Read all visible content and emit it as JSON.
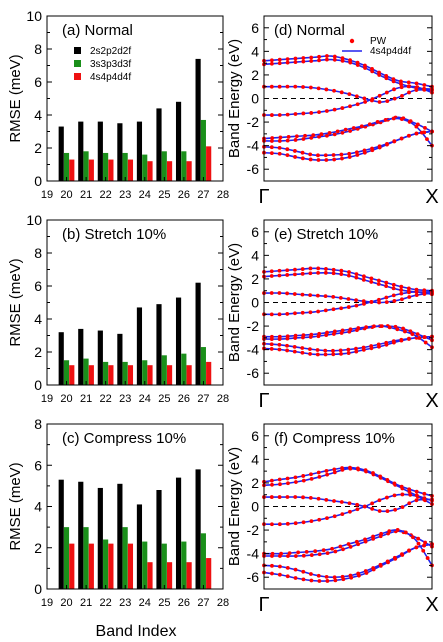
{
  "figure": {
    "common_xlabel": "Band Index"
  },
  "colors": {
    "black_series": "#000000",
    "green_series": "#1a8f1a",
    "red_series": "#ee1111",
    "pw_points": "#ff0000",
    "fit_line": "#2222ee",
    "fermi_line": "#000000"
  },
  "chart_data": [
    {
      "type": "bar",
      "label": "(a) Normal",
      "ylabel": "RMSE (meV)",
      "ylim": [
        0,
        10
      ],
      "yticks": [
        0,
        2,
        4,
        6,
        8,
        10
      ],
      "xlim": [
        19,
        28
      ],
      "xticks": [
        19,
        20,
        21,
        22,
        23,
        24,
        25,
        26,
        27,
        28
      ],
      "categories": [
        20,
        21,
        22,
        23,
        24,
        25,
        26,
        27
      ],
      "legend_position": "top-left",
      "series": [
        {
          "name": "2s2p2d2f",
          "color": "#000000",
          "values": [
            3.3,
            3.6,
            3.6,
            3.5,
            3.6,
            4.4,
            4.8,
            7.4
          ]
        },
        {
          "name": "3s3p3d3f",
          "color": "#1a8f1a",
          "values": [
            1.7,
            1.8,
            1.7,
            1.7,
            1.6,
            1.8,
            1.8,
            3.7
          ]
        },
        {
          "name": "4s4p4d4f",
          "color": "#ee1111",
          "values": [
            1.3,
            1.3,
            1.3,
            1.3,
            1.2,
            1.2,
            1.2,
            2.1
          ]
        }
      ]
    },
    {
      "type": "bar",
      "label": "(b) Stretch 10%",
      "ylabel": "RMSE (meV)",
      "ylim": [
        0,
        10
      ],
      "yticks": [
        0,
        2,
        4,
        6,
        8,
        10
      ],
      "xlim": [
        19,
        28
      ],
      "xticks": [
        19,
        20,
        21,
        22,
        23,
        24,
        25,
        26,
        27,
        28
      ],
      "categories": [
        20,
        21,
        22,
        23,
        24,
        25,
        26,
        27
      ],
      "series": [
        {
          "name": "2s2p2d2f",
          "color": "#000000",
          "values": [
            3.2,
            3.4,
            3.3,
            3.1,
            4.7,
            4.9,
            5.3,
            6.2
          ]
        },
        {
          "name": "3s3p3d3f",
          "color": "#1a8f1a",
          "values": [
            1.5,
            1.6,
            1.4,
            1.4,
            1.5,
            1.8,
            1.9,
            2.3
          ]
        },
        {
          "name": "4s4p4d4f",
          "color": "#ee1111",
          "values": [
            1.2,
            1.2,
            1.2,
            1.2,
            1.2,
            1.2,
            1.2,
            1.4
          ]
        }
      ]
    },
    {
      "type": "bar",
      "label": "(c) Compress 10%",
      "ylabel": "RMSE (meV)",
      "ylim": [
        0,
        8
      ],
      "yticks": [
        0,
        2,
        4,
        6,
        8
      ],
      "xlim": [
        19,
        28
      ],
      "xticks": [
        19,
        20,
        21,
        22,
        23,
        24,
        25,
        26,
        27,
        28
      ],
      "categories": [
        20,
        21,
        22,
        23,
        24,
        25,
        26,
        27
      ],
      "series": [
        {
          "name": "2s2p2d2f",
          "color": "#000000",
          "values": [
            5.3,
            5.2,
            4.9,
            5.1,
            4.1,
            4.8,
            5.4,
            5.8
          ]
        },
        {
          "name": "3s3p3d3f",
          "color": "#1a8f1a",
          "values": [
            3.0,
            3.0,
            2.4,
            3.0,
            2.3,
            2.2,
            2.3,
            2.7
          ]
        },
        {
          "name": "4s4p4d4f",
          "color": "#ee1111",
          "values": [
            2.2,
            2.2,
            2.2,
            2.2,
            1.3,
            1.3,
            1.3,
            1.5
          ]
        }
      ]
    },
    {
      "type": "line",
      "label": "(d) Normal",
      "ylabel": "Band Energy (eV)",
      "ylim": [
        -7,
        7
      ],
      "yticks": [
        -6,
        -4,
        -2,
        0,
        2,
        4,
        6
      ],
      "xlim": [
        0,
        1
      ],
      "xticks_labels": [
        "Γ",
        "X"
      ],
      "fermi_level": 0,
      "legend_position": "top-right",
      "legend": [
        {
          "name": "PW",
          "marker": "point",
          "color": "#ff0000"
        },
        {
          "name": "4s4p4d4f",
          "marker": "line",
          "color": "#2222ee"
        }
      ],
      "series": [
        {
          "values": [
            -4.6,
            -4.7,
            -5.0,
            -5.2,
            -5.2,
            -5.0,
            -4.6,
            -4.1,
            -3.5,
            -3.0,
            -2.8
          ]
        },
        {
          "values": [
            -4.1,
            -4.2,
            -4.5,
            -4.8,
            -4.8,
            -4.7,
            -4.4,
            -4.0,
            -3.5,
            -3.0,
            -2.8
          ]
        },
        {
          "values": [
            -3.6,
            -3.6,
            -3.5,
            -3.3,
            -3.1,
            -2.8,
            -2.4,
            -2.0,
            -1.6,
            -2.1,
            -2.8
          ]
        },
        {
          "values": [
            -3.4,
            -3.3,
            -3.2,
            -3.1,
            -2.9,
            -2.6,
            -2.3,
            -1.9,
            -1.7,
            -2.3,
            -4.0
          ]
        },
        {
          "values": [
            -1.4,
            -1.4,
            -1.3,
            -1.2,
            -1.0,
            -0.7,
            -0.3,
            0.3,
            0.9,
            1.0,
            0.5
          ]
        },
        {
          "values": [
            1.0,
            1.0,
            1.0,
            0.9,
            0.7,
            0.4,
            0.0,
            -0.3,
            0.1,
            0.7,
            0.7
          ]
        },
        {
          "values": [
            2.9,
            3.0,
            3.1,
            3.2,
            3.3,
            3.1,
            2.6,
            1.9,
            1.3,
            0.9,
            0.8
          ]
        },
        {
          "values": [
            3.2,
            3.3,
            3.4,
            3.5,
            3.6,
            3.3,
            2.8,
            2.1,
            1.5,
            1.3,
            1.0
          ]
        }
      ]
    },
    {
      "type": "line",
      "label": "(e) Stretch 10%",
      "ylabel": "Band Energy (eV)",
      "ylim": [
        -7,
        7
      ],
      "yticks": [
        -6,
        -4,
        -2,
        0,
        2,
        4,
        6
      ],
      "xlim": [
        0,
        1
      ],
      "xticks_labels": [
        "Γ",
        "X"
      ],
      "fermi_level": 0,
      "series": [
        {
          "values": [
            -3.9,
            -4.0,
            -4.2,
            -4.4,
            -4.4,
            -4.3,
            -4.0,
            -3.7,
            -3.3,
            -3.0,
            -2.9
          ]
        },
        {
          "values": [
            -3.5,
            -3.6,
            -3.8,
            -4.0,
            -4.1,
            -4.0,
            -3.8,
            -3.5,
            -3.2,
            -3.0,
            -2.9
          ]
        },
        {
          "values": [
            -3.1,
            -3.1,
            -3.0,
            -2.9,
            -2.7,
            -2.5,
            -2.2,
            -2.0,
            -2.1,
            -2.6,
            -3.2
          ]
        },
        {
          "values": [
            -2.9,
            -2.9,
            -2.8,
            -2.7,
            -2.5,
            -2.3,
            -2.1,
            -2.0,
            -2.3,
            -2.8,
            -3.8
          ]
        },
        {
          "values": [
            -1.0,
            -1.0,
            -0.9,
            -0.8,
            -0.6,
            -0.4,
            -0.1,
            0.3,
            0.7,
            0.9,
            0.7
          ]
        },
        {
          "values": [
            0.8,
            0.8,
            0.7,
            0.6,
            0.5,
            0.3,
            0.1,
            0.0,
            0.2,
            0.6,
            0.8
          ]
        },
        {
          "values": [
            2.2,
            2.3,
            2.4,
            2.5,
            2.5,
            2.3,
            1.9,
            1.5,
            1.1,
            0.9,
            0.9
          ]
        },
        {
          "values": [
            2.6,
            2.7,
            2.8,
            2.9,
            2.8,
            2.6,
            2.2,
            1.8,
            1.4,
            1.1,
            1.0
          ]
        }
      ]
    },
    {
      "type": "line",
      "label": "(f) Compress 10%",
      "ylabel": "Band Energy (eV)",
      "ylim": [
        -7,
        7
      ],
      "yticks": [
        -6,
        -4,
        -2,
        0,
        2,
        4,
        6
      ],
      "xlim": [
        0,
        1
      ],
      "xticks_labels": [
        "Γ",
        "X"
      ],
      "fermi_level": 0,
      "series": [
        {
          "values": [
            -5.6,
            -5.8,
            -6.1,
            -6.3,
            -6.3,
            -6.1,
            -5.7,
            -5.0,
            -4.3,
            -3.5,
            -3.2
          ]
        },
        {
          "values": [
            -5.0,
            -5.1,
            -5.4,
            -5.8,
            -6.0,
            -5.9,
            -5.5,
            -4.9,
            -4.2,
            -3.5,
            -3.2
          ]
        },
        {
          "values": [
            -4.2,
            -4.2,
            -4.2,
            -4.1,
            -3.9,
            -3.5,
            -3.0,
            -2.5,
            -2.1,
            -2.6,
            -3.4
          ]
        },
        {
          "values": [
            -4.0,
            -4.0,
            -3.9,
            -3.8,
            -3.6,
            -3.2,
            -2.8,
            -2.3,
            -2.0,
            -2.8,
            -5.0
          ]
        },
        {
          "values": [
            -1.5,
            -1.5,
            -1.4,
            -1.2,
            -0.9,
            -0.5,
            0.0,
            0.6,
            1.0,
            0.9,
            0.2
          ]
        },
        {
          "values": [
            0.8,
            0.8,
            0.8,
            0.7,
            0.5,
            0.3,
            0.0,
            -0.4,
            -0.2,
            0.5,
            0.6
          ]
        },
        {
          "values": [
            1.8,
            1.9,
            2.1,
            2.4,
            2.8,
            3.2,
            3.0,
            2.4,
            1.7,
            1.0,
            0.5
          ]
        },
        {
          "values": [
            2.1,
            2.3,
            2.5,
            2.8,
            3.1,
            3.3,
            3.1,
            2.5,
            1.8,
            1.3,
            0.9
          ]
        }
      ]
    }
  ]
}
